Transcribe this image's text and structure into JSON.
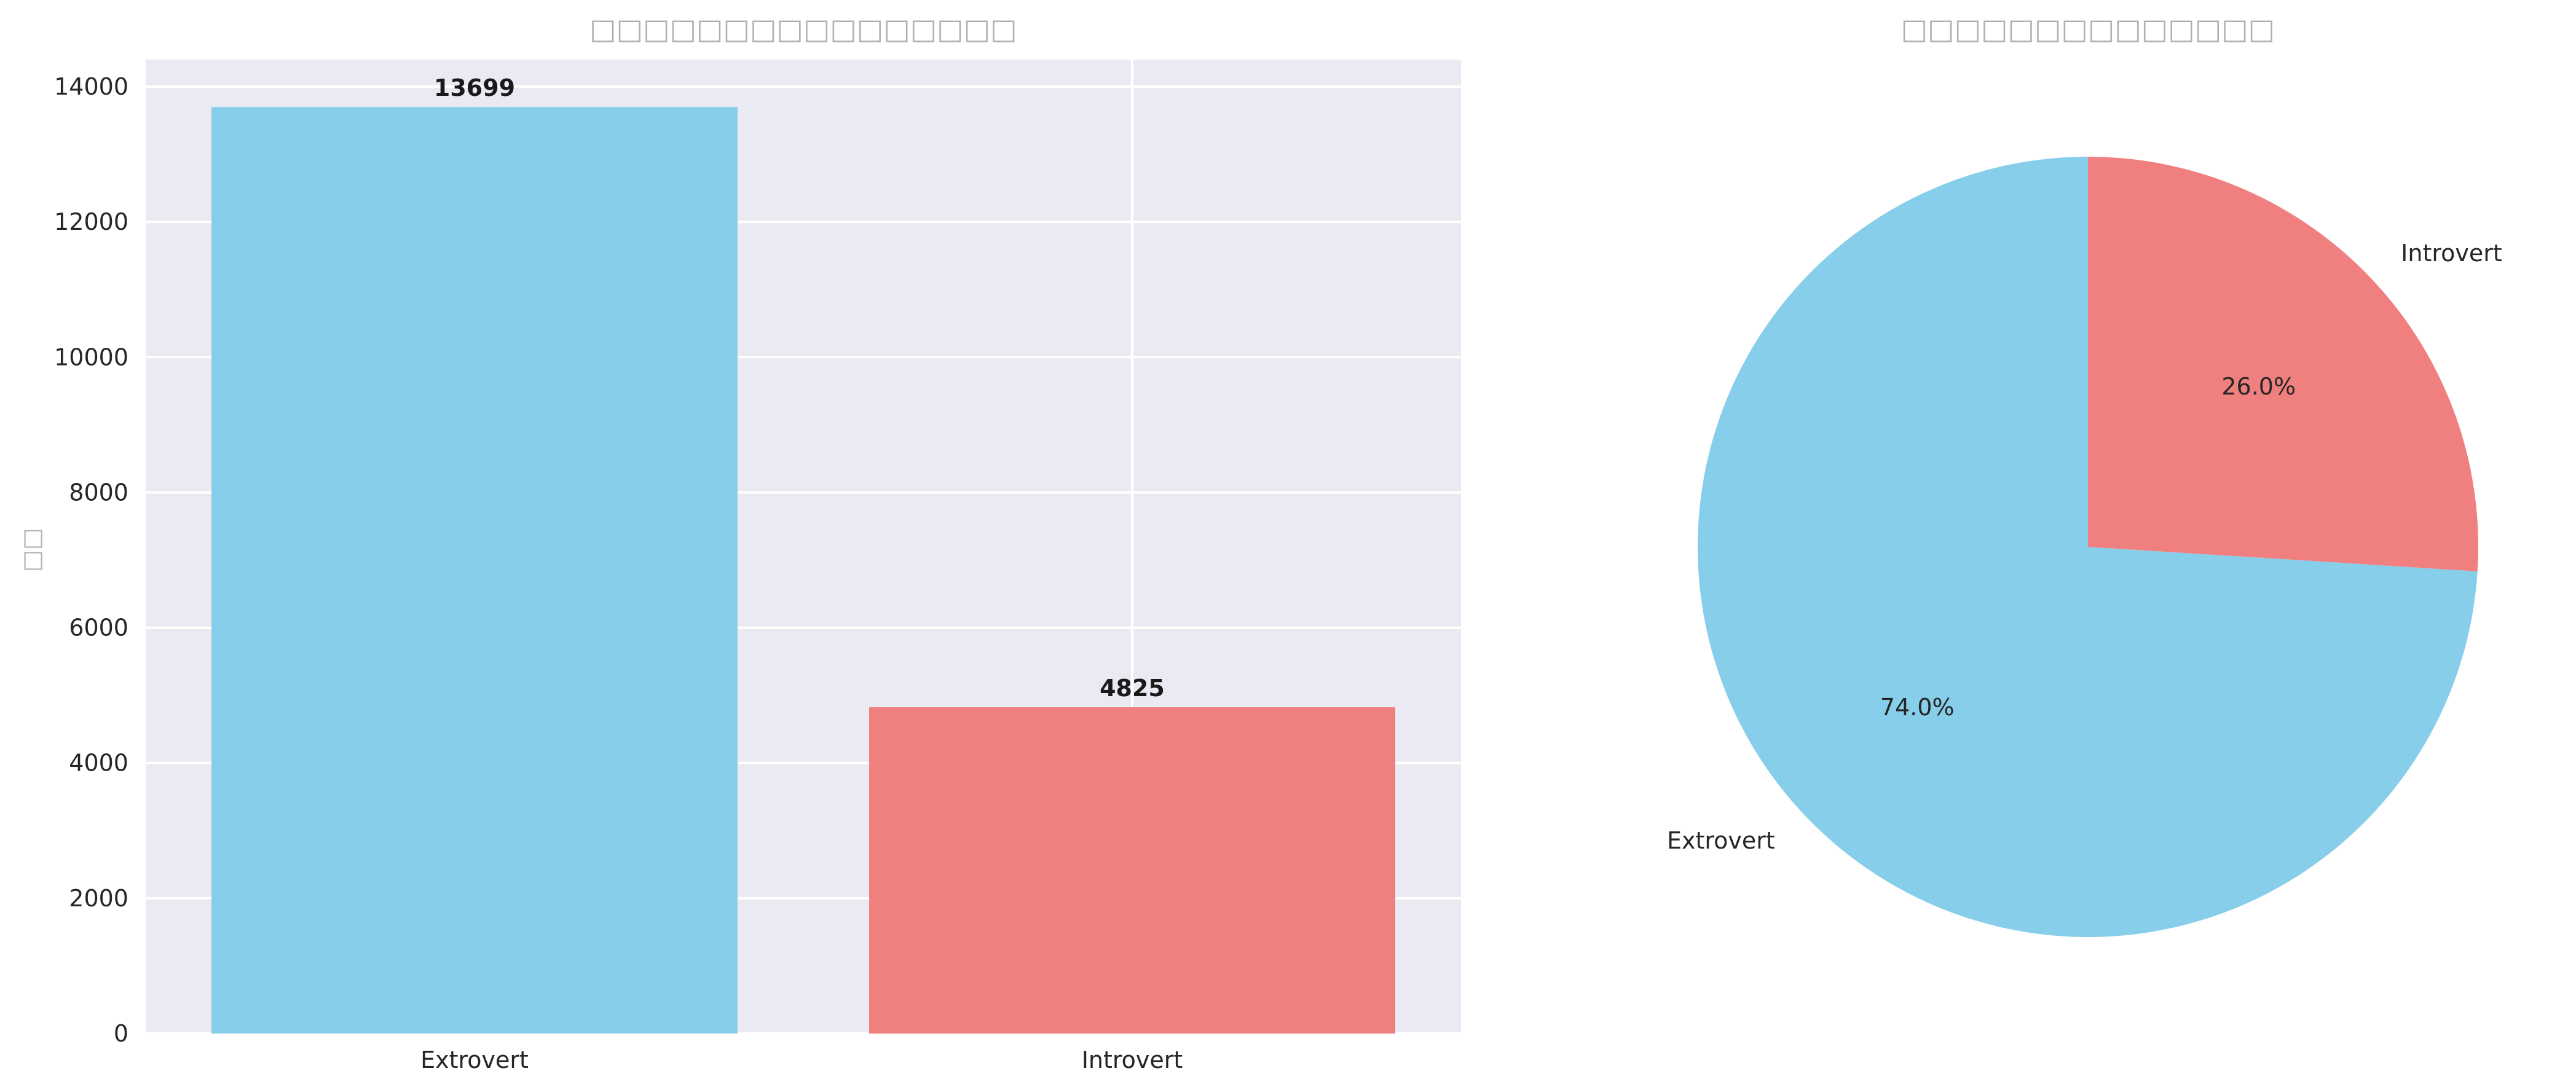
{
  "chart_data": [
    {
      "type": "bar",
      "title": "□□□□□□□□□□□□□□□□",
      "ylabel": "□□",
      "categories": [
        "Extrovert",
        "Introvert"
      ],
      "values": [
        13699,
        4825
      ],
      "data_labels": [
        "13699",
        "4825"
      ],
      "colors": [
        "#87CEEB",
        "#F08080"
      ],
      "ylim": [
        0,
        14400
      ],
      "yticks": [
        0,
        2000,
        4000,
        6000,
        8000,
        10000,
        12000,
        14000
      ],
      "ytick_labels": [
        "0",
        "2000",
        "4000",
        "6000",
        "8000",
        "10000",
        "12000",
        "14000"
      ],
      "grid": true,
      "background": "#EAEAF2"
    },
    {
      "type": "pie",
      "title": "□□□□□□□□□□□□□□",
      "labels": [
        "Extrovert",
        "Introvert"
      ],
      "values": [
        74.0,
        26.0
      ],
      "pct_labels": [
        "74.0%",
        "26.0%"
      ],
      "colors": [
        "#87CEEB",
        "#F08080"
      ],
      "start_angle_deg": 90,
      "direction": "counterclockwise"
    }
  ]
}
